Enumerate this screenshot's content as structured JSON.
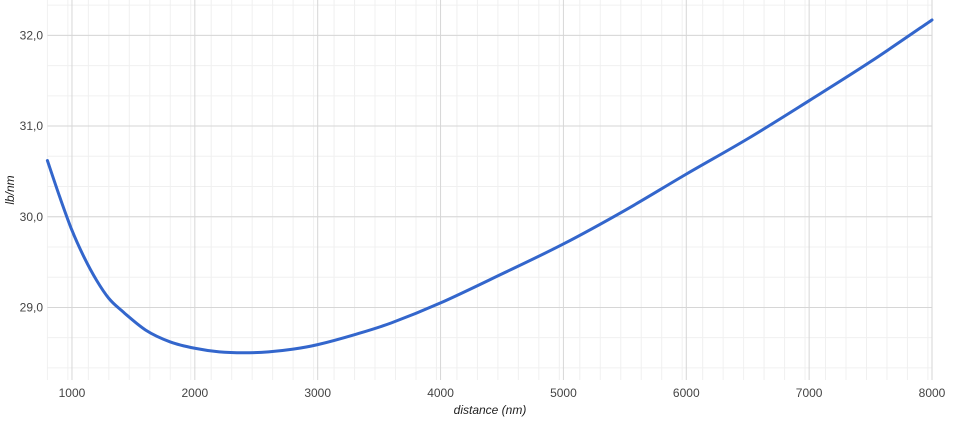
{
  "chart_data": {
    "type": "line",
    "title": "",
    "xlabel": "distance (nm)",
    "ylabel": "lb/nm",
    "xlim": [
      800,
      8000
    ],
    "ylim": [
      28.2,
      32.39
    ],
    "x_ticks": [
      "1000",
      "2000",
      "3000",
      "4000",
      "5000",
      "6000",
      "7000",
      "8000"
    ],
    "y_ticks": [
      "29,0",
      "30,0",
      "31,0",
      "32,0"
    ],
    "grid": true,
    "line_color": "#3366cc",
    "series": [
      {
        "x": [
          800,
          900,
          1000,
          1100,
          1200,
          1300,
          1400,
          1600,
          1800,
          2000,
          2200,
          2400,
          2600,
          2800,
          3000,
          3300,
          3600,
          4000,
          4500,
          5000,
          5500,
          6000,
          6500,
          7000,
          7500,
          8000
        ],
        "values": [
          30.62,
          30.22,
          29.85,
          29.55,
          29.3,
          29.1,
          28.97,
          28.75,
          28.62,
          28.55,
          28.51,
          28.5,
          28.51,
          28.54,
          28.59,
          28.7,
          28.83,
          29.05,
          29.37,
          29.7,
          30.07,
          30.47,
          30.86,
          31.28,
          31.71,
          32.17
        ]
      }
    ]
  }
}
